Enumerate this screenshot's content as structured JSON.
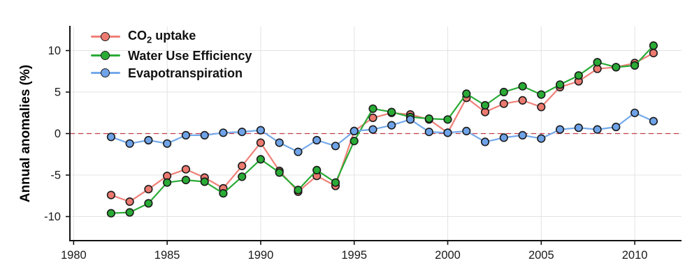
{
  "figure": {
    "background": "#ffffff"
  },
  "chart_data": {
    "type": "line",
    "title": "",
    "xlabel": "",
    "ylabel": "Annual anomalies (%)",
    "x": [
      1982,
      1983,
      1984,
      1985,
      1986,
      1987,
      1988,
      1989,
      1990,
      1991,
      1992,
      1993,
      1994,
      1995,
      1996,
      1997,
      1998,
      1999,
      2000,
      2001,
      2002,
      2003,
      2004,
      2005,
      2006,
      2007,
      2008,
      2009,
      2010,
      2011
    ],
    "series": [
      {
        "name": "CO₂ uptake",
        "name_base": "CO",
        "name_sub": "2",
        "name_rest": " uptake",
        "color": "#ef8078",
        "marker_fill": "#ec7a70",
        "values": [
          -7.4,
          -8.2,
          -6.7,
          -5.1,
          -4.3,
          -5.3,
          -6.6,
          -3.9,
          -1.1,
          -4.5,
          -7.0,
          -5.1,
          -6.3,
          0.3,
          1.9,
          2.5,
          2.3,
          1.7,
          0.1,
          4.3,
          2.6,
          3.6,
          4.0,
          3.2,
          5.6,
          6.3,
          7.8,
          8.0,
          8.5,
          9.7
        ]
      },
      {
        "name": "Water Use Efficiency",
        "color": "#2aab36",
        "marker_fill": "#2aab36",
        "values": [
          -9.6,
          -9.5,
          -8.4,
          -5.9,
          -5.6,
          -5.8,
          -7.2,
          -5.2,
          -3.1,
          -4.7,
          -6.8,
          -4.4,
          -5.9,
          -0.9,
          3.0,
          2.6,
          2.0,
          1.8,
          1.7,
          4.8,
          3.4,
          5.0,
          5.7,
          4.7,
          5.9,
          7.0,
          8.6,
          8.0,
          8.2,
          10.6
        ]
      },
      {
        "name": "Evapotranspiration",
        "color": "#74a9ea",
        "marker_fill": "#6fa3e8",
        "values": [
          -0.4,
          -1.2,
          -0.8,
          -1.2,
          -0.2,
          -0.2,
          0.1,
          0.2,
          0.4,
          -1.1,
          -2.2,
          -0.8,
          -1.5,
          0.3,
          0.5,
          1.0,
          1.7,
          0.2,
          0.1,
          0.3,
          -1.0,
          -0.5,
          -0.2,
          -0.6,
          0.5,
          0.7,
          0.5,
          0.8,
          2.5,
          1.5
        ]
      }
    ],
    "marker_edge": "#1a1a1a",
    "x_ticks": [
      1980,
      1985,
      1990,
      1995,
      2000,
      2005,
      2010
    ],
    "y_ticks": [
      -10,
      -5,
      0,
      5,
      10
    ],
    "xlim": [
      1979.8,
      2012.5
    ],
    "ylim": [
      -12.9,
      12.9
    ],
    "grid": true,
    "grid_color": "#e3e3e3",
    "zero_line": {
      "y": 0,
      "color": "#c23b4b",
      "dash": "7 5"
    },
    "axis_color": "#111111",
    "tick_label_color": "#1a1a1a",
    "legend_position": "top-left"
  }
}
